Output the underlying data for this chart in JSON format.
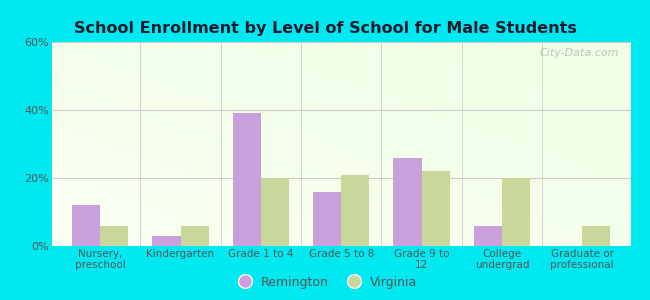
{
  "title": "School Enrollment by Level of School for Male Students",
  "categories": [
    "Nursery,\npreschool",
    "Kindergarten",
    "Grade 1 to 4",
    "Grade 5 to 8",
    "Grade 9 to\n12",
    "College\nundergrad",
    "Graduate or\nprofessional"
  ],
  "remington_values": [
    12,
    3,
    39,
    16,
    26,
    6,
    0
  ],
  "virginia_values": [
    6,
    6,
    20,
    21,
    22,
    20,
    6
  ],
  "remington_color": "#c9a0dc",
  "virginia_color": "#c8d89a",
  "ylim": [
    0,
    60
  ],
  "yticks": [
    0,
    20,
    40,
    60
  ],
  "ytick_labels": [
    "0%",
    "20%",
    "40%",
    "60%"
  ],
  "background_color": "#00e8f0",
  "bar_width": 0.35,
  "legend_labels": [
    "Remington",
    "Virginia"
  ],
  "watermark": "City-Data.com",
  "title_color": "#1a1a2e",
  "tick_color": "#555555",
  "grid_color": "#cccccc"
}
